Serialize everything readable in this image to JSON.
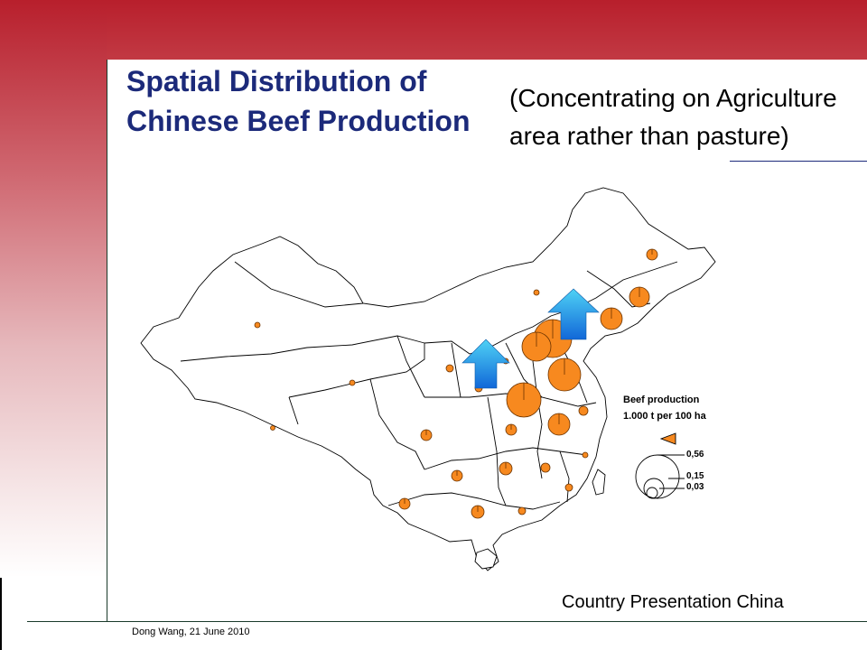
{
  "slide": {
    "title": "Spatial Distribution of Chinese Beef Production",
    "subtitle": "(Concentrating on Agriculture area rather than pasture)",
    "footer_title": "Country Presentation China",
    "footer_author": "Dong Wang, 21 June 2010"
  },
  "legend": {
    "title": "Beef production",
    "unit": "1.000 t per 100 ha",
    "values": [
      "0,56",
      "0,15",
      "0,03"
    ]
  },
  "colors": {
    "header": "#b81f2c",
    "title_text": "#1c2a7a",
    "marker_fill": "#f7891f",
    "arrow": "#1aa0e0"
  },
  "map": {
    "markers": [
      {
        "name": "heilongjiang",
        "size": 0.03
      },
      {
        "name": "jilin",
        "size": 0.1
      },
      {
        "name": "liaoning",
        "size": 0.15
      },
      {
        "name": "hebei-north",
        "size": 0.35
      },
      {
        "name": "hebei",
        "size": 0.3
      },
      {
        "name": "shandong",
        "size": 0.3
      },
      {
        "name": "henan",
        "size": 0.45
      },
      {
        "name": "anhui",
        "size": 0.15
      },
      {
        "name": "jiangsu",
        "size": 0.03
      },
      {
        "name": "hubei",
        "size": 0.04
      },
      {
        "name": "hunan",
        "size": 0.05
      },
      {
        "name": "guangxi",
        "size": 0.04
      },
      {
        "name": "guizhou",
        "size": 0.03
      },
      {
        "name": "yunnan",
        "size": 0.03
      },
      {
        "name": "sichuan",
        "size": 0.03
      },
      {
        "name": "xinjiang",
        "size": 0.01
      },
      {
        "name": "tibet",
        "size": 0.01
      },
      {
        "name": "qinghai",
        "size": 0.01
      }
    ],
    "arrow_icons": [
      "up-arrow-icon",
      "up-arrow-icon"
    ]
  }
}
